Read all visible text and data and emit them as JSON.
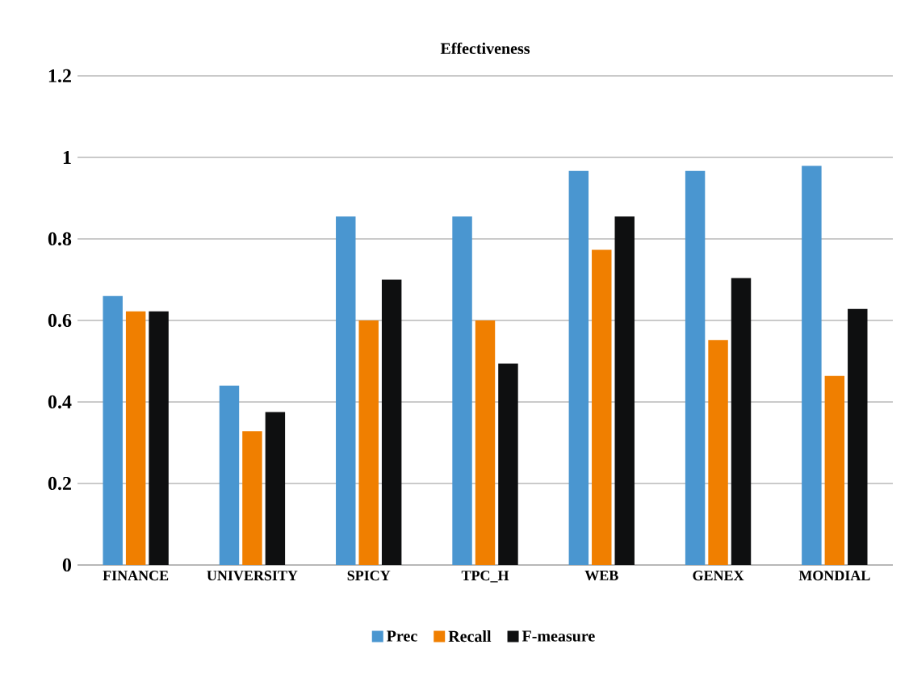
{
  "chart_data": {
    "type": "bar",
    "title": "Effectiveness",
    "categories": [
      "FINANCE",
      "UNIVERSITY",
      "SPICY",
      "TPC_H",
      "WEB",
      "GENEX",
      "MONDIAL"
    ],
    "series": [
      {
        "name": "Prec",
        "color": "#4a96d0",
        "values": [
          0.66,
          0.44,
          0.855,
          0.855,
          0.967,
          0.967,
          0.979
        ]
      },
      {
        "name": "Recall",
        "color": "#f07f00",
        "values": [
          0.622,
          0.328,
          0.6,
          0.6,
          0.773,
          0.552,
          0.464
        ]
      },
      {
        "name": "F-measure",
        "color": "#0e0f10",
        "values": [
          0.622,
          0.375,
          0.7,
          0.494,
          0.855,
          0.704,
          0.628
        ]
      }
    ],
    "ylim": [
      0,
      1.2
    ],
    "yticks": [
      0,
      0.2,
      0.4,
      0.6,
      0.8,
      1,
      1.2
    ],
    "grid": "y",
    "legend": "bottom"
  }
}
